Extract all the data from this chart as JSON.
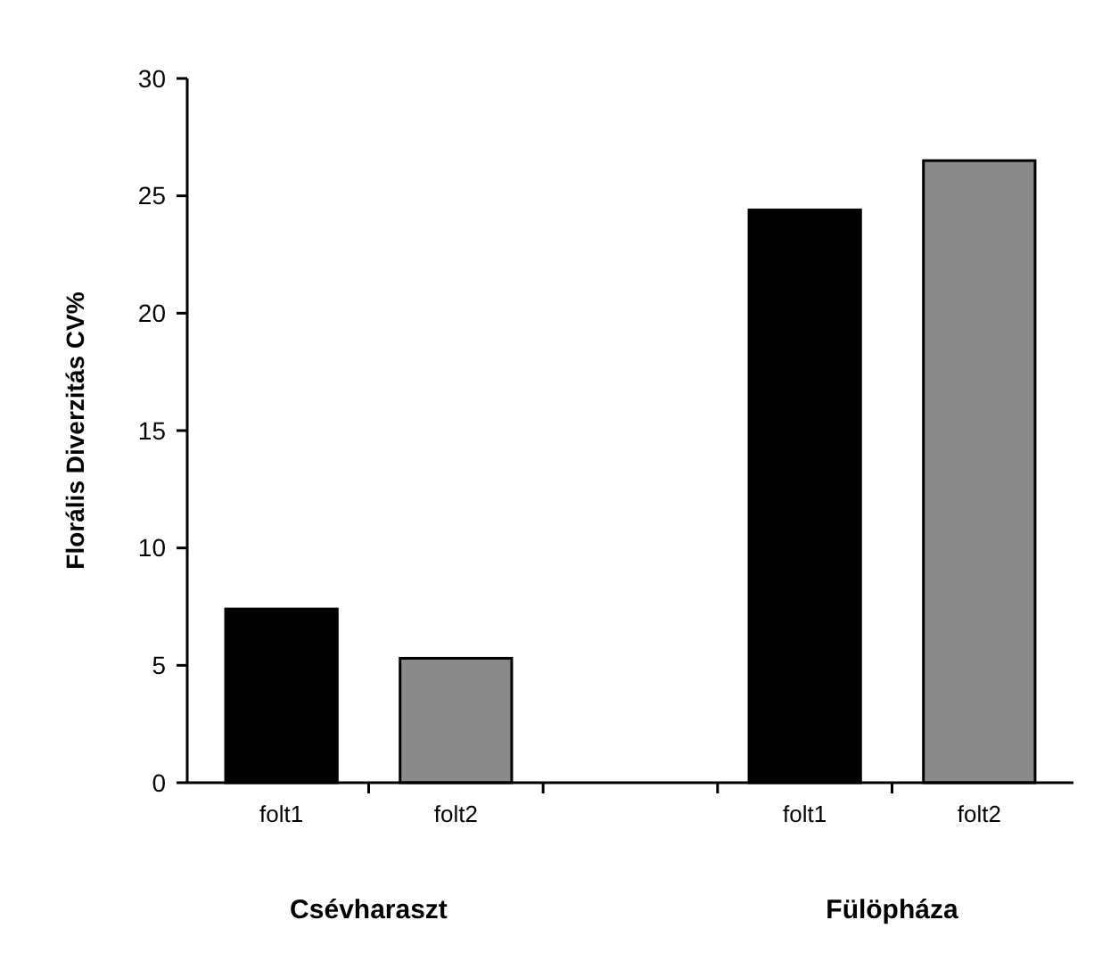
{
  "chart_data": {
    "type": "bar",
    "ylabel": "Florális Diverzitás CV%",
    "categories": [
      "folt1",
      "folt2",
      null,
      "folt1",
      "folt2"
    ],
    "values": [
      7.4,
      5.3,
      null,
      24.4,
      26.5
    ],
    "colors": [
      "#000000",
      "#8a8a8a",
      null,
      "#000000",
      "#8a8a8a"
    ],
    "ylim": [
      0,
      30
    ],
    "yticks": [
      0,
      5,
      10,
      15,
      20,
      25,
      30
    ],
    "grid": false,
    "annotations": [
      "Csévharaszt",
      "Fülöpháza"
    ]
  }
}
